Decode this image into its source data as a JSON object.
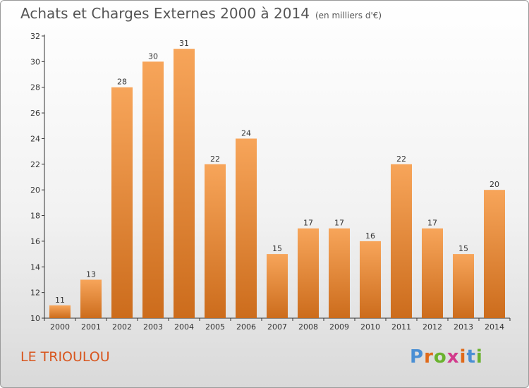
{
  "header": {
    "title": "Achats et Charges Externes 2000 à 2014",
    "unit": "(en milliers d'€)"
  },
  "footer": {
    "commune": "LE TRIOULOU",
    "logo_letters": [
      "P",
      "r",
      "o",
      "x",
      "i",
      "t",
      "i"
    ]
  },
  "colors": {
    "bar_top": "#f7a55a",
    "bar_bottom": "#cc6c1c",
    "commune_text": "#d8561e"
  },
  "chart_data": {
    "type": "bar",
    "title": "Achats et Charges Externes 2000 à 2014",
    "subtitle": "(en milliers d'€)",
    "xlabel": "",
    "ylabel": "",
    "categories": [
      "2000",
      "2001",
      "2002",
      "2003",
      "2004",
      "2005",
      "2006",
      "2007",
      "2008",
      "2009",
      "2010",
      "2011",
      "2012",
      "2013",
      "2014"
    ],
    "values": [
      11,
      13,
      28,
      30,
      31,
      22,
      24,
      15,
      17,
      17,
      16,
      22,
      17,
      15,
      20
    ],
    "ylim": [
      10,
      32
    ],
    "yticks": [
      10,
      12,
      14,
      16,
      18,
      20,
      22,
      24,
      26,
      28,
      30,
      32
    ],
    "grid": false,
    "legend": "none"
  }
}
